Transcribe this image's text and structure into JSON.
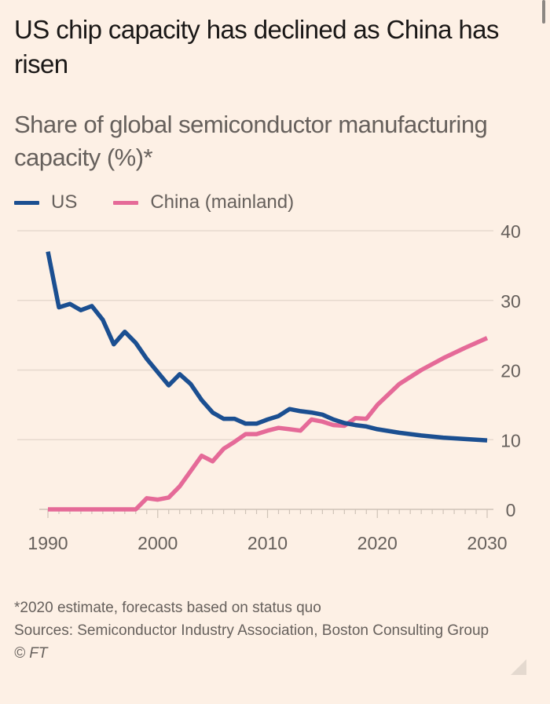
{
  "header": {
    "title": "US chip capacity has declined as China has risen",
    "subtitle": "Share of global semiconductor manufacturing capacity (%)*"
  },
  "legend": [
    {
      "label": "US",
      "color": "#1B4F91"
    },
    {
      "label": "China (mainland)",
      "color": "#E56A98"
    }
  ],
  "footer": {
    "note": "*2020 estimate, forecasts based on status quo",
    "sources": "Sources: Semiconductor Industry Association, Boston Consulting Group",
    "copyright": "© FT"
  },
  "chart_data": {
    "type": "line",
    "title": "US chip capacity has declined as China has risen",
    "subtitle": "Share of global semiconductor manufacturing capacity (%)*",
    "xlabel": "",
    "ylabel": "Share of global semiconductor manufacturing capacity (%)",
    "xlim": [
      1990,
      2030
    ],
    "ylim": [
      0,
      40
    ],
    "x_ticks": [
      1990,
      2000,
      2010,
      2020,
      2030
    ],
    "y_ticks": [
      0,
      10,
      20,
      30,
      40
    ],
    "y_axis_side": "right",
    "grid": true,
    "legend_position": "top-left",
    "series": [
      {
        "name": "US",
        "color": "#1B4F91",
        "x": [
          1990,
          1991,
          1992,
          1993,
          1994,
          1995,
          1996,
          1997,
          1998,
          1999,
          2000,
          2001,
          2002,
          2003,
          2004,
          2005,
          2006,
          2007,
          2008,
          2009,
          2010,
          2011,
          2012,
          2013,
          2014,
          2015,
          2016,
          2017,
          2018,
          2019,
          2020,
          2022,
          2024,
          2026,
          2028,
          2030
        ],
        "values": [
          37.0,
          29.0,
          29.5,
          28.6,
          29.2,
          27.2,
          23.7,
          25.5,
          23.9,
          21.6,
          19.7,
          17.8,
          19.4,
          18.0,
          15.7,
          13.9,
          13.0,
          13.0,
          12.3,
          12.3,
          12.9,
          13.4,
          14.4,
          14.1,
          13.9,
          13.6,
          12.9,
          12.4,
          12.1,
          11.9,
          11.5,
          11.0,
          10.6,
          10.3,
          10.1,
          9.9
        ]
      },
      {
        "name": "China (mainland)",
        "color": "#E56A98",
        "x": [
          1990,
          1991,
          1992,
          1993,
          1994,
          1995,
          1996,
          1997,
          1998,
          1999,
          2000,
          2001,
          2002,
          2003,
          2004,
          2005,
          2006,
          2007,
          2008,
          2009,
          2010,
          2011,
          2012,
          2013,
          2014,
          2015,
          2016,
          2017,
          2018,
          2019,
          2020,
          2022,
          2024,
          2026,
          2028,
          2030
        ],
        "values": [
          0,
          0,
          0,
          0,
          0,
          0,
          0,
          0,
          0,
          1.6,
          1.4,
          1.7,
          3.3,
          5.5,
          7.7,
          6.9,
          8.7,
          9.7,
          10.8,
          10.8,
          11.3,
          11.7,
          11.5,
          11.3,
          12.9,
          12.6,
          12.1,
          12.0,
          13.1,
          13.0,
          15.0,
          18.0,
          20.0,
          21.7,
          23.2,
          24.6
        ]
      }
    ]
  }
}
